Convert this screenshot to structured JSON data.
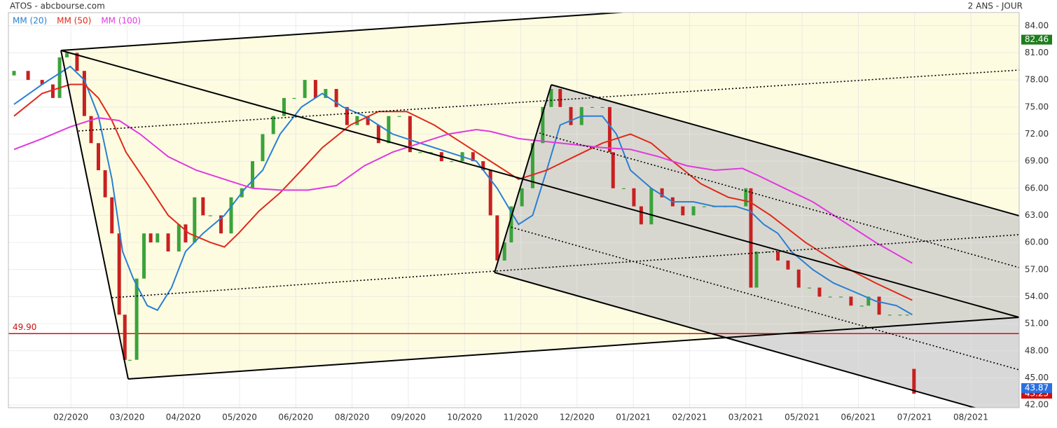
{
  "chart_data": {
    "type": "candlestick",
    "title": "ATOS - abcbourse.com",
    "subtitle": "2 ANS - JOUR",
    "x": [
      -1.01,
      -0.76,
      -0.51,
      -0.32,
      -0.2,
      -0.07,
      0.11,
      0.24,
      0.36,
      0.49,
      0.61,
      0.73,
      0.86,
      0.96,
      1.05,
      1.17,
      1.3,
      1.42,
      1.54,
      1.73,
      1.92,
      2.04,
      2.2,
      2.35,
      2.48,
      2.67,
      2.85,
      3.04,
      3.23,
      3.41,
      3.6,
      3.79,
      3.97,
      4.16,
      4.35,
      4.53,
      4.72,
      4.91,
      5.09,
      5.28,
      5.47,
      5.65,
      5.84,
      6.03,
      6.21,
      6.4,
      6.59,
      6.77,
      6.96,
      7.15,
      7.33,
      7.46,
      7.58,
      7.71,
      7.83,
      8.02,
      8.21,
      8.39,
      8.54,
      8.7,
      8.89,
      9.08,
      9.27,
      9.45,
      9.58,
      9.64,
      9.83,
      10.01,
      10.14,
      10.32,
      10.51,
      10.7,
      10.88,
      11.07,
      11.26,
      11.44,
      11.63,
      11.82,
      12.0,
      12.09,
      12.19,
      12.38,
      12.57,
      12.75,
      12.94,
      13.13,
      13.31,
      13.5,
      13.69,
      13.87,
      14.06,
      14.18,
      14.37,
      14.56,
      14.74,
      14.87,
      14.99
    ],
    "candles": {
      "open": [
        78.5,
        79,
        78,
        77.5,
        76,
        80.5,
        81,
        79,
        74,
        71,
        68,
        65,
        61,
        52,
        47,
        47,
        56,
        61,
        60,
        61,
        59,
        62,
        60,
        65,
        63,
        63,
        61,
        65,
        66,
        69,
        72,
        74,
        76,
        76,
        78,
        76,
        77,
        75,
        73,
        74,
        73,
        71,
        74,
        74,
        70,
        70,
        70,
        69,
        69,
        70,
        69,
        68,
        63,
        58,
        60,
        64,
        66,
        71,
        75,
        77,
        75,
        73,
        75,
        75,
        75,
        70,
        66,
        66,
        64,
        62,
        66,
        65,
        64,
        63,
        64,
        64,
        64,
        64,
        64,
        66,
        55,
        59,
        59,
        58,
        57,
        55,
        55,
        54,
        54,
        54,
        53,
        53,
        54,
        52,
        52,
        52,
        46
      ],
      "close": [
        79,
        78,
        77.5,
        76,
        80.5,
        81,
        79,
        74,
        71,
        68,
        65,
        61,
        52,
        47,
        47,
        56,
        61,
        60,
        61,
        59,
        62,
        60,
        65,
        63,
        63,
        61,
        65,
        66,
        69,
        72,
        74,
        76,
        76,
        78,
        76,
        77,
        75,
        73,
        74,
        73,
        71,
        74,
        74,
        70,
        70,
        70,
        69,
        69,
        70,
        69,
        68,
        63,
        58,
        60,
        64,
        66,
        71,
        75,
        77,
        75,
        73,
        75,
        75,
        75,
        70,
        66,
        66,
        64,
        62,
        66,
        65,
        64,
        63,
        64,
        64,
        64,
        64,
        64,
        66,
        55,
        59,
        59,
        58,
        57,
        55,
        55,
        54,
        54,
        54,
        53,
        53,
        54,
        52,
        52,
        52,
        52,
        43.25
      ]
    },
    "up_color": "#3aa33a",
    "down_color": "#c82020",
    "series": [
      {
        "name": "MM (20)",
        "color": "#2a7fd4",
        "x": [
          -1.01,
          -0.51,
          -0.01,
          0.24,
          0.49,
          0.73,
          0.92,
          1.11,
          1.36,
          1.54,
          1.79,
          2.04,
          2.35,
          2.73,
          3.1,
          3.41,
          3.72,
          4.1,
          4.47,
          4.84,
          5.22,
          5.72,
          6.21,
          6.71,
          7.21,
          7.58,
          7.96,
          8.21,
          8.46,
          8.7,
          9.08,
          9.45,
          9.7,
          9.95,
          10.32,
          10.7,
          11.07,
          11.44,
          11.82,
          12.07,
          12.32,
          12.57,
          12.81,
          13.19,
          13.56,
          13.94,
          14.31,
          14.68,
          14.96
        ],
        "values": [
          75.3,
          77.5,
          79.5,
          78,
          74,
          67,
          59,
          56,
          53,
          52.5,
          55,
          59,
          61,
          63,
          66,
          68,
          72,
          75,
          76.5,
          75,
          74,
          72,
          71,
          70,
          69,
          66,
          62,
          63,
          68,
          73,
          74,
          74,
          72,
          68,
          66,
          64.5,
          64.5,
          64,
          64,
          63.5,
          62,
          61,
          59,
          57,
          55.5,
          54.5,
          53.5,
          53,
          52
        ]
      },
      {
        "name": "MM (50)",
        "color": "#e02a1a",
        "x": [
          -1.01,
          -0.51,
          -0.01,
          0.24,
          0.49,
          0.73,
          0.98,
          1.36,
          1.73,
          2.1,
          2.48,
          2.73,
          2.98,
          3.35,
          3.72,
          4.1,
          4.47,
          4.97,
          5.47,
          5.97,
          6.46,
          6.96,
          7.46,
          7.96,
          8.46,
          8.95,
          9.45,
          9.95,
          10.32,
          10.7,
          11.2,
          11.69,
          12.07,
          12.44,
          13.06,
          13.69,
          14.31,
          14.96
        ],
        "values": [
          74,
          76.5,
          77.5,
          77.5,
          76,
          73.5,
          70,
          66.5,
          63,
          61,
          60,
          59.5,
          61,
          63.5,
          65.5,
          68,
          70.5,
          73,
          74.5,
          74.5,
          73,
          71,
          69,
          67,
          68,
          69.5,
          71,
          72,
          71,
          69,
          66.5,
          65,
          64.5,
          63,
          60,
          57.5,
          55.5,
          53.6
        ]
      },
      {
        "name": "MM (100)",
        "color": "#e03ae0",
        "x": [
          -1.01,
          -0.51,
          -0.01,
          0.49,
          0.86,
          1.23,
          1.73,
          2.23,
          2.73,
          3.23,
          3.72,
          4.22,
          4.72,
          5.22,
          5.72,
          6.21,
          6.71,
          7.21,
          7.46,
          7.96,
          8.7,
          9.45,
          9.95,
          10.45,
          10.95,
          11.44,
          11.94,
          12.19,
          12.69,
          13.19,
          13.69,
          14.31,
          14.96
        ],
        "values": [
          70.3,
          71.5,
          72.8,
          73.8,
          73.5,
          72,
          69.5,
          68,
          67,
          66,
          65.8,
          65.8,
          66.3,
          68.5,
          70,
          71,
          72,
          72.5,
          72.3,
          71.5,
          71,
          70.5,
          70.3,
          69.5,
          68.5,
          68,
          68.2,
          67.5,
          66,
          64.5,
          62.5,
          60,
          57.7
        ]
      }
    ],
    "xlim": [
      -1.11,
      16.86
    ],
    "xticks": [
      {
        "value": 0,
        "label": "02/2020"
      },
      {
        "value": 1,
        "label": "03/2020"
      },
      {
        "value": 2,
        "label": "04/2020"
      },
      {
        "value": 3,
        "label": "05/2020"
      },
      {
        "value": 4,
        "label": "06/2020"
      },
      {
        "value": 5,
        "label": "08/2020"
      },
      {
        "value": 6,
        "label": "09/2020"
      },
      {
        "value": 7,
        "label": "10/2020"
      },
      {
        "value": 8,
        "label": "11/2020"
      },
      {
        "value": 9,
        "label": "12/2020"
      },
      {
        "value": 10,
        "label": "01/2021"
      },
      {
        "value": 11,
        "label": "02/2021"
      },
      {
        "value": 12,
        "label": "03/2021"
      },
      {
        "value": 13,
        "label": "05/2021"
      },
      {
        "value": 14,
        "label": "06/2021"
      },
      {
        "value": 15,
        "label": "07/2021"
      },
      {
        "value": 16,
        "label": "08/2021"
      }
    ],
    "ylim": [
      41.7,
      85.3
    ],
    "yticks": [
      {
        "value": 42,
        "label": "42.00"
      },
      {
        "value": 45,
        "label": "45.00"
      },
      {
        "value": 48,
        "label": "48.00"
      },
      {
        "value": 51,
        "label": "51.00"
      },
      {
        "value": 54,
        "label": "54.00"
      },
      {
        "value": 57,
        "label": "57.00"
      },
      {
        "value": 60,
        "label": "60.00"
      },
      {
        "value": 63,
        "label": "63.00"
      },
      {
        "value": 66,
        "label": "66.00"
      },
      {
        "value": 69,
        "label": "69.00"
      },
      {
        "value": 72,
        "label": "72.00"
      },
      {
        "value": 75,
        "label": "75.00"
      },
      {
        "value": 78,
        "label": "78.00"
      },
      {
        "value": 81,
        "label": "81.00"
      },
      {
        "value": 84,
        "label": "84.00"
      }
    ],
    "grid": true,
    "reference_line": {
      "value": 49.9,
      "label": "49.90",
      "color": "#d01010"
    },
    "price_tags": [
      {
        "value": 82.46,
        "color": "#1e7d1e"
      },
      {
        "value": 43.25,
        "color": "#d01010"
      },
      {
        "value": 43.87,
        "color": "#2a6fe0"
      }
    ]
  }
}
